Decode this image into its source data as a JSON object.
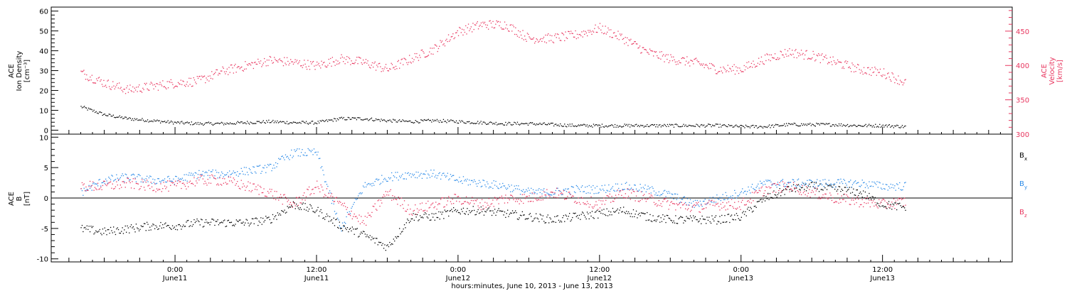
{
  "chart_data": [
    {
      "type": "scatter",
      "panel": "top",
      "left_axis": {
        "label_lines": [
          "ACE",
          "Ion Density",
          "[cm⁻³]"
        ],
        "ylim": [
          -2,
          62
        ],
        "ticks": [
          "0",
          "10",
          "20",
          "30",
          "40",
          "50",
          "60"
        ],
        "tick_values": [
          0,
          10,
          20,
          30,
          40,
          50,
          60
        ]
      },
      "right_axis": {
        "label_lines": [
          "ACE",
          "Velocity",
          "[km/s]"
        ],
        "ylim": [
          300,
          485
        ],
        "ticks": [
          "300",
          "350",
          "400",
          "450"
        ],
        "tick_values": [
          300,
          350,
          400,
          450
        ],
        "color": "#e8365f"
      },
      "series": [
        {
          "axis": "left",
          "color": "#000000",
          "x_hours": [
            -8,
            -6,
            -4,
            -2,
            0,
            2,
            4,
            6,
            8,
            10,
            12,
            14,
            16,
            18,
            20,
            22,
            24,
            26,
            28,
            30,
            32,
            34,
            36,
            38,
            40,
            42,
            44,
            46,
            48,
            50,
            52,
            54,
            56,
            58,
            60,
            62
          ],
          "values": [
            12,
            8,
            6,
            5,
            4,
            3.5,
            3.5,
            4,
            4.5,
            4,
            4,
            6,
            6,
            5,
            4.5,
            5,
            4.5,
            4,
            3.5,
            3.5,
            3,
            2.5,
            2.5,
            2.5,
            2.5,
            2.5,
            2.5,
            2.5,
            2,
            2,
            3,
            3,
            3,
            2.5,
            2.5,
            2
          ]
        },
        {
          "axis": "right",
          "color": "#e8365f",
          "x_hours": [
            -8,
            -6,
            -4,
            -2,
            0,
            2,
            4,
            6,
            8,
            10,
            12,
            14,
            16,
            18,
            20,
            22,
            24,
            26,
            28,
            30,
            32,
            34,
            36,
            38,
            40,
            42,
            44,
            46,
            48,
            50,
            52,
            54,
            56,
            58,
            60,
            62
          ],
          "values": [
            390,
            375,
            365,
            370,
            375,
            378,
            392,
            400,
            408,
            405,
            400,
            410,
            405,
            395,
            410,
            425,
            450,
            460,
            460,
            440,
            440,
            445,
            455,
            440,
            420,
            410,
            405,
            395,
            395,
            410,
            420,
            415,
            405,
            395,
            390,
            375
          ]
        }
      ]
    },
    {
      "type": "scatter",
      "panel": "bottom",
      "left_axis": {
        "label_lines": [
          "ACE",
          "B",
          "[nT]"
        ],
        "ylim": [
          -10.5,
          10.5
        ],
        "ticks": [
          "-10",
          "-5",
          "0",
          "5",
          "10"
        ],
        "tick_values": [
          -10,
          -5,
          0,
          5,
          10
        ]
      },
      "legend_position": "right",
      "series": [
        {
          "name": "Bx",
          "label_main": "B",
          "label_sub": "x",
          "color": "#000000",
          "x_hours": [
            -8,
            -6,
            -4,
            -2,
            0,
            2,
            4,
            6,
            8,
            10,
            12,
            14,
            16,
            18,
            20,
            22,
            24,
            26,
            28,
            30,
            32,
            34,
            36,
            38,
            40,
            42,
            44,
            46,
            48,
            50,
            52,
            54,
            56,
            58,
            60,
            62
          ],
          "values": [
            -5,
            -5.5,
            -5,
            -4.5,
            -4.5,
            -4,
            -4,
            -4,
            -3.5,
            -1,
            -2,
            -4.5,
            -6,
            -8,
            -3,
            -3,
            -2,
            -2,
            -2.5,
            -3,
            -3.5,
            -3,
            -2.5,
            -2,
            -3,
            -3.5,
            -3.5,
            -3.5,
            -3,
            0,
            1.5,
            2,
            1.5,
            1,
            -1,
            -1.5
          ]
        },
        {
          "name": "By",
          "label_main": "B",
          "label_sub": "y",
          "color": "#2b8be8",
          "x_hours": [
            -8,
            -6,
            -4,
            -2,
            0,
            2,
            4,
            6,
            8,
            10,
            12,
            14,
            16,
            18,
            20,
            22,
            24,
            26,
            28,
            30,
            32,
            34,
            36,
            38,
            40,
            42,
            44,
            46,
            48,
            50,
            52,
            54,
            56,
            58,
            60,
            62
          ],
          "values": [
            1,
            3,
            3.5,
            3,
            3,
            4,
            4,
            4.5,
            5,
            7.5,
            7.5,
            -5,
            2,
            3.5,
            4,
            4,
            3,
            2.5,
            2,
            1,
            1,
            1.5,
            1.5,
            2,
            1.5,
            0.5,
            -1,
            0,
            1,
            2.5,
            2.5,
            2.5,
            2.5,
            2.5,
            2,
            2
          ]
        },
        {
          "name": "Bz",
          "label_main": "B",
          "label_sub": "z",
          "color": "#e8365f",
          "x_hours": [
            -8,
            -6,
            -4,
            -2,
            0,
            2,
            4,
            6,
            8,
            10,
            12,
            14,
            16,
            18,
            20,
            22,
            24,
            26,
            28,
            30,
            32,
            34,
            36,
            38,
            40,
            42,
            44,
            46,
            48,
            50,
            52,
            54,
            56,
            58,
            60,
            62
          ],
          "values": [
            2,
            2,
            2.5,
            2,
            2,
            3,
            3,
            2,
            1,
            -1,
            2,
            -1,
            -4,
            1,
            -2,
            -1,
            0,
            -1,
            0,
            0,
            1,
            0,
            -1,
            1,
            0,
            -1,
            -1.5,
            -1,
            -1,
            1.5,
            2,
            1,
            0,
            -0.5,
            -1,
            -0.5
          ]
        }
      ]
    }
  ],
  "x_axis": {
    "xlim_hours": [
      -10.5,
      71
    ],
    "tick_labels": [
      {
        "x_hours": 0,
        "time": "0:00",
        "date": "June11"
      },
      {
        "x_hours": 12,
        "time": "12:00",
        "date": "June11"
      },
      {
        "x_hours": 24,
        "time": "0:00",
        "date": "June12"
      },
      {
        "x_hours": 36,
        "time": "12:00",
        "date": "June12"
      },
      {
        "x_hours": 48,
        "time": "0:00",
        "date": "June13"
      },
      {
        "x_hours": 60,
        "time": "12:00",
        "date": "June13"
      }
    ],
    "title": "hours:minutes, June 10, 2013 - June 13, 2013"
  }
}
